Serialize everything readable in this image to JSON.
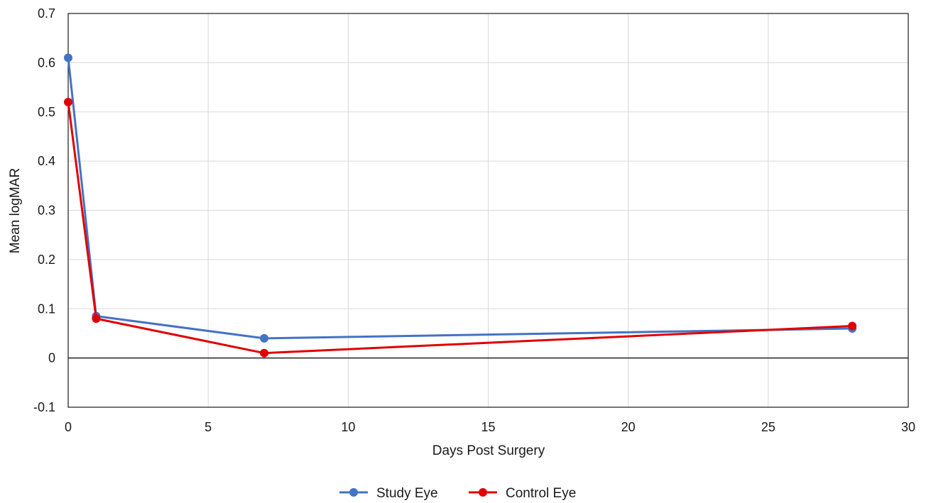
{
  "chart_data": {
    "type": "line",
    "xlabel": "Days Post Surgery",
    "ylabel": "Mean logMAR",
    "xlim": [
      0,
      30
    ],
    "ylim": [
      -0.1,
      0.7
    ],
    "xticks": [
      0,
      5,
      10,
      15,
      20,
      25,
      30
    ],
    "yticks": [
      -0.1,
      0,
      0.1,
      0.2,
      0.3,
      0.4,
      0.5,
      0.6,
      0.7
    ],
    "xtick_labels": [
      "0",
      "5",
      "10",
      "15",
      "20",
      "25",
      "30"
    ],
    "ytick_labels": [
      "-0.1",
      "0",
      "0.1",
      "0.2",
      "0.3",
      "0.4",
      "0.5",
      "0.6",
      "0.7"
    ],
    "grid": true,
    "legend_position": "bottom-center",
    "series": [
      {
        "name": "Study Eye",
        "color": "#4472C4",
        "x": [
          0,
          1,
          7,
          28
        ],
        "y": [
          0.61,
          0.085,
          0.04,
          0.06
        ]
      },
      {
        "name": "Control Eye",
        "color": "#E00000",
        "x": [
          0,
          1,
          7,
          28
        ],
        "y": [
          0.52,
          0.08,
          0.01,
          0.065
        ]
      }
    ]
  }
}
